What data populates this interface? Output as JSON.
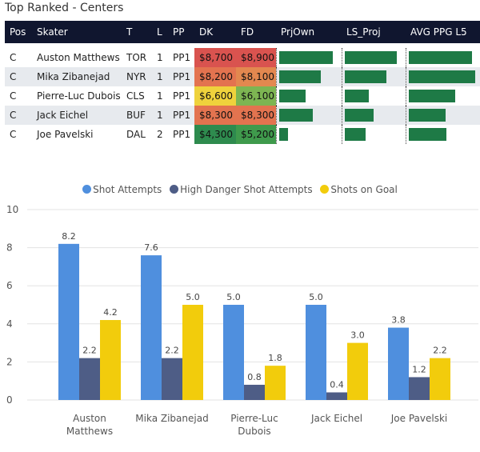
{
  "title": "Top Ranked - Centers",
  "table": {
    "headers": [
      "Pos",
      "Skater",
      "T",
      "L",
      "PP",
      "DK",
      "FD",
      "PrjOwn",
      "LS_Proj",
      "AVG PPG L5"
    ],
    "rows": [
      {
        "pos": "C",
        "skater": "Auston Matthews",
        "team": "TOR",
        "line": "1",
        "pp": "PP1",
        "dk": "$8,700",
        "fd": "$8,900",
        "dk_color": "#d9534f",
        "fd_color": "#d9534f",
        "prjown": 0.88,
        "ls_proj": 0.88,
        "avg_ppg": 0.92
      },
      {
        "pos": "C",
        "skater": "Mika Zibanejad",
        "team": "NYR",
        "line": "1",
        "pp": "PP1",
        "dk": "$8,200",
        "fd": "$8,100",
        "dk_color": "#e3734f",
        "fd_color": "#e3884f",
        "prjown": 0.68,
        "ls_proj": 0.7,
        "avg_ppg": 0.97
      },
      {
        "pos": "C",
        "skater": "Pierre-Luc Dubois",
        "team": "CLS",
        "line": "1",
        "pp": "PP1",
        "dk": "$6,600",
        "fd": "$6,100",
        "dk_color": "#efd23c",
        "fd_color": "#7db552",
        "prjown": 0.44,
        "ls_proj": 0.4,
        "avg_ppg": 0.67
      },
      {
        "pos": "C",
        "skater": "Jack Eichel",
        "team": "BUF",
        "line": "1",
        "pp": "PP1",
        "dk": "$8,300",
        "fd": "$8,300",
        "dk_color": "#e3734f",
        "fd_color": "#e3734f",
        "prjown": 0.55,
        "ls_proj": 0.48,
        "avg_ppg": 0.53
      },
      {
        "pos": "C",
        "skater": "Joe Pavelski",
        "team": "DAL",
        "line": "2",
        "pp": "PP1",
        "dk": "$4,300",
        "fd": "$5,200",
        "dk_color": "#2e8b4e",
        "fd_color": "#3f9a4c",
        "prjown": 0.15,
        "ls_proj": 0.35,
        "avg_ppg": 0.55
      }
    ]
  },
  "colors": {
    "header_bg": "#10162f",
    "table_bar": "#1e7a46",
    "shot_attempts": "#4f8fde",
    "high_danger": "#4e5d86",
    "shots_on_goal": "#f2cc0c"
  },
  "chart_data": {
    "type": "bar",
    "categories": [
      "Auston Matthews",
      "Mika Zibanejad",
      "Pierre-Luc Dubois",
      "Jack Eichel",
      "Joe Pavelski"
    ],
    "category_lines": [
      [
        "Auston",
        "Matthews"
      ],
      [
        "Mika Zibanejad"
      ],
      [
        "Pierre-Luc",
        "Dubois"
      ],
      [
        "Jack Eichel"
      ],
      [
        "Joe Pavelski"
      ]
    ],
    "series": [
      {
        "name": "Shot Attempts",
        "values": [
          8.2,
          7.6,
          5.0,
          5.0,
          3.8
        ]
      },
      {
        "name": "High Danger Shot Attempts",
        "values": [
          2.2,
          2.2,
          0.8,
          0.4,
          1.2
        ]
      },
      {
        "name": "Shots on Goal",
        "values": [
          4.2,
          5.0,
          1.8,
          3.0,
          2.2
        ]
      }
    ],
    "value_labels": [
      [
        "8.2",
        "7.6",
        "5.0",
        "5.0",
        "3.8"
      ],
      [
        "2.2",
        "2.2",
        "0.8",
        "0.4",
        "1.2"
      ],
      [
        "4.2",
        "5.0",
        "1.8",
        "3.0",
        "2.2"
      ]
    ],
    "ylim": [
      0,
      10
    ],
    "yticks": [
      "0",
      "2",
      "4",
      "6",
      "8",
      "10"
    ],
    "legend_position": "top-center"
  }
}
